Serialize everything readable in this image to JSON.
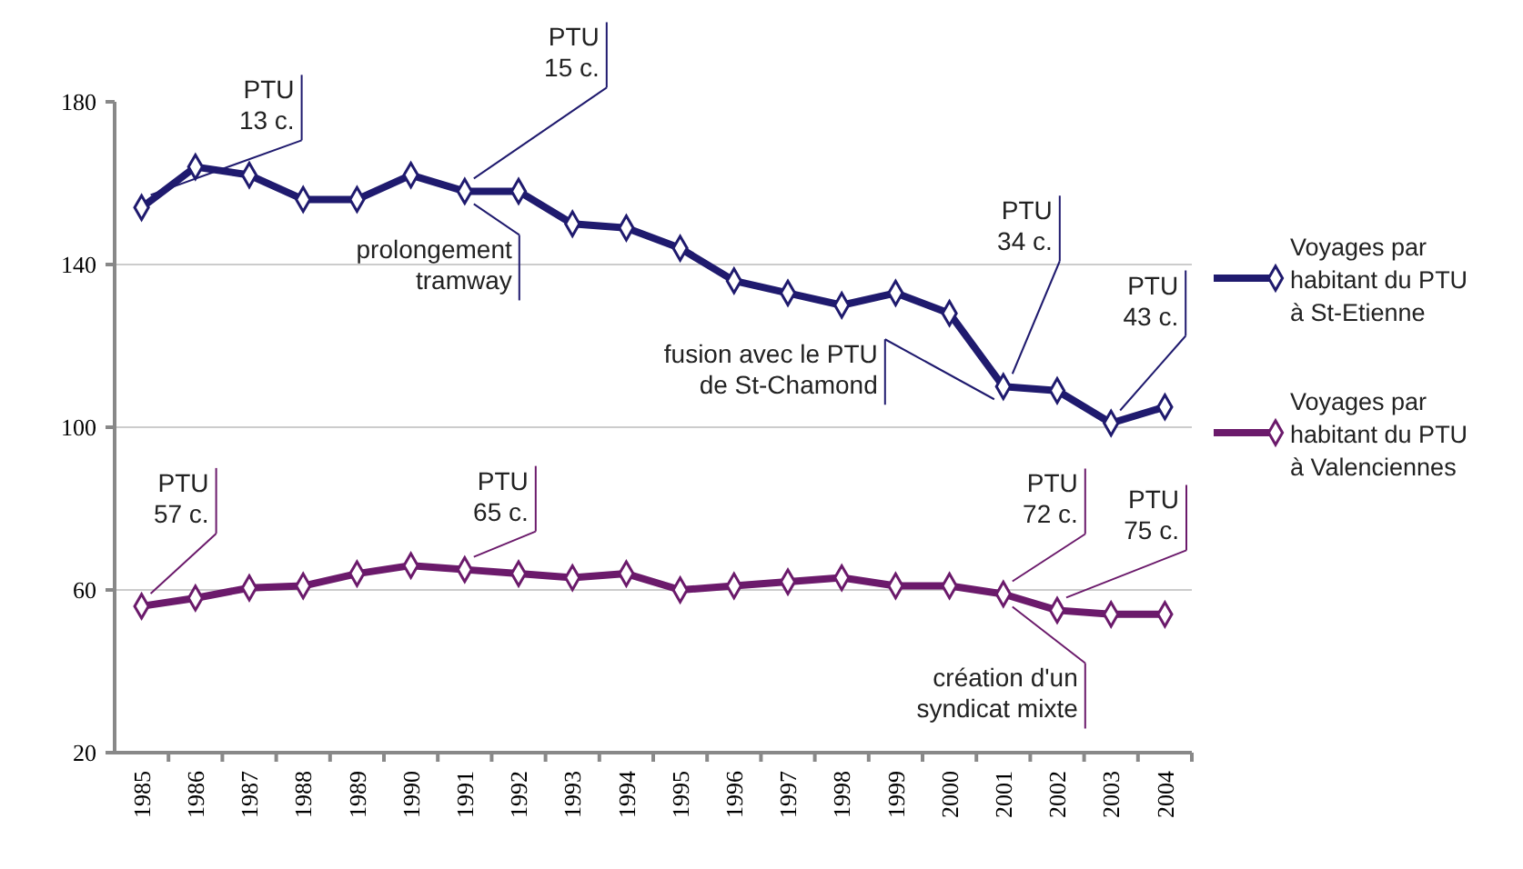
{
  "chart_data": {
    "type": "line",
    "categories": [
      "1985",
      "1986",
      "1987",
      "1988",
      "1989",
      "1990",
      "1991",
      "1992",
      "1993",
      "1994",
      "1995",
      "1996",
      "1997",
      "1998",
      "1999",
      "2000",
      "2001",
      "2002",
      "2003",
      "2004"
    ],
    "series": [
      {
        "name": "Voyages par habitant du PTU à St-Etienne",
        "color": "#1f1a6e",
        "values": [
          154,
          164,
          162,
          156,
          156,
          162,
          158,
          158,
          150,
          149,
          144,
          136,
          133,
          130,
          133,
          128,
          110,
          109,
          101,
          105
        ]
      },
      {
        "name": "Voyages par habitant du PTU à Valenciennes",
        "color": "#6b1a6b",
        "values": [
          56,
          58,
          60.5,
          61,
          64,
          66,
          65,
          64,
          63,
          64,
          60,
          61,
          62,
          63,
          61,
          61,
          59,
          55,
          54,
          54
        ]
      }
    ],
    "ylim": [
      20,
      180
    ],
    "yticks": [
      20,
      60,
      100,
      140,
      180
    ],
    "grid": "y",
    "legend": "right",
    "marker": "diamond",
    "line_style": "solid",
    "annotations": [
      {
        "text": "PTU\n13 c.",
        "x": "1985",
        "y": 154
      },
      {
        "text": "PTU\n15 c.",
        "x": "1991",
        "y": 158
      },
      {
        "text": "prolongement\ntramway",
        "x": "1991",
        "y": 158
      },
      {
        "text": "PTU\n34 c.",
        "x": "2001",
        "y": 110
      },
      {
        "text": "fusion avec le PTU\nde St-Chamond",
        "x": "2001",
        "y": 110
      },
      {
        "text": "PTU\n43 c.",
        "x": "2003",
        "y": 101
      },
      {
        "text": "PTU\n57 c.",
        "x": "1985",
        "y": 56
      },
      {
        "text": "PTU\n65 c.",
        "x": "1991",
        "y": 65
      },
      {
        "text": "PTU\n72 c.",
        "x": "2001",
        "y": 59
      },
      {
        "text": "PTU\n75 c.",
        "x": "2002",
        "y": 55
      },
      {
        "text": "création d'un\nsyndicat mixte",
        "x": "2001",
        "y": 59
      }
    ]
  }
}
